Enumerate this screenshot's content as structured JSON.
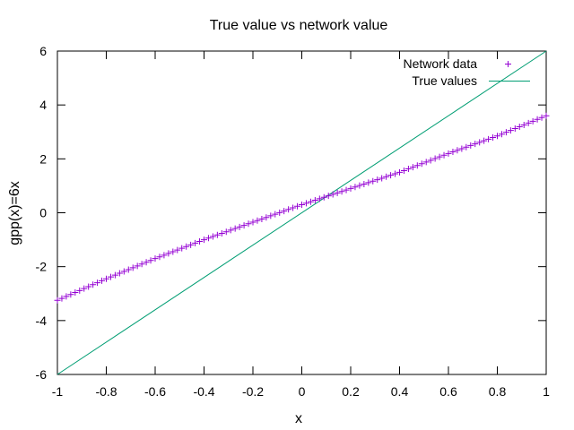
{
  "chart_data": {
    "type": "scatter",
    "title": "True value vs network value",
    "xlabel": "x",
    "ylabel": "gpp(x)=6x",
    "xlim": [
      -1,
      1
    ],
    "ylim": [
      -6,
      6
    ],
    "xticks": [
      "-1",
      "-0.8",
      "-0.6",
      "-0.4",
      "-0.2",
      "0",
      "0.2",
      "0.4",
      "0.6",
      "0.8",
      "1"
    ],
    "yticks": [
      "-6",
      "-4",
      "-2",
      "0",
      "2",
      "4",
      "6"
    ],
    "legend_position": "top-right",
    "grid": false,
    "series": [
      {
        "name": "Network data",
        "kind": "points",
        "marker": "plus",
        "color": "#9400d3",
        "x": [
          -1.0,
          -0.8,
          -0.6,
          -0.4,
          -0.2,
          0.0,
          0.2,
          0.4,
          0.6,
          0.8,
          1.0
        ],
        "y": [
          -3.25,
          -2.45,
          -1.7,
          -1.0,
          -0.35,
          0.3,
          0.9,
          1.5,
          2.2,
          2.85,
          3.6
        ],
        "points_count": 111
      },
      {
        "name": "True values",
        "kind": "line",
        "color": "#009e73",
        "x": [
          -1.0,
          1.0
        ],
        "y": [
          -6.0,
          6.0
        ]
      }
    ]
  }
}
